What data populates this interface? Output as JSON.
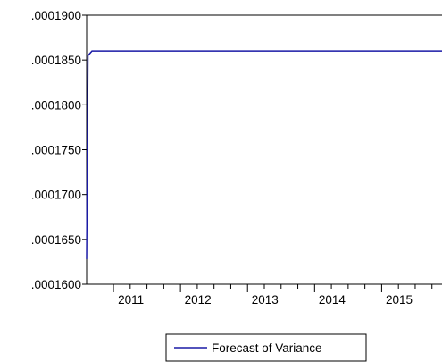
{
  "chart_data": {
    "type": "line",
    "title": "",
    "xlabel": "",
    "ylabel": "",
    "x_tick_labels": [
      "2011",
      "2012",
      "2013",
      "2014",
      "2015"
    ],
    "y_tick_labels": [
      ".0001600",
      ".0001650",
      ".0001700",
      ".0001750",
      ".0001800",
      ".0001850",
      ".0001900"
    ],
    "ylim": [
      0.00016,
      0.00019
    ],
    "xlim": [
      2010.6,
      2015.9
    ],
    "grid": false,
    "legend_position": "bottom-center",
    "series": [
      {
        "name": "Forecast of Variance",
        "color": "#1a1aa6",
        "x": [
          2010.6,
          2010.62,
          2010.68,
          2011,
          2012,
          2013,
          2014,
          2015,
          2015.9
        ],
        "values": [
          0.0001628,
          0.0001855,
          0.000186,
          0.000186,
          0.000186,
          0.000186,
          0.000186,
          0.000186,
          0.000186
        ]
      }
    ]
  }
}
